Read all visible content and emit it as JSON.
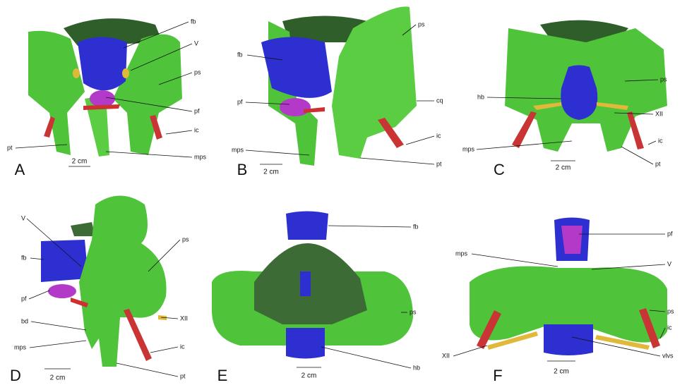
{
  "panels": [
    {
      "letter": "A",
      "scale": "2 cm",
      "labels": [
        "fb",
        "V",
        "ps",
        "pf",
        "ic",
        "pt",
        "mps"
      ]
    },
    {
      "letter": "B",
      "scale": "2 cm",
      "labels": [
        "ps",
        "fb",
        "pf",
        "cq",
        "ic",
        "mps",
        "pt"
      ]
    },
    {
      "letter": "C",
      "scale": "2 cm",
      "labels": [
        "ps",
        "hb",
        "XII",
        "ic",
        "mps",
        "pt"
      ]
    },
    {
      "letter": "D",
      "scale": "2 cm",
      "labels": [
        "V",
        "fb",
        "ps",
        "pf",
        "XII",
        "bd",
        "mps",
        "ic",
        "pt"
      ]
    },
    {
      "letter": "E",
      "scale": "2 cm",
      "labels": [
        "fb",
        "ps",
        "hb"
      ]
    },
    {
      "letter": "F",
      "scale": "2 cm",
      "labels": [
        "pf",
        "mps",
        "V",
        "ps",
        "ic",
        "XII",
        "vlvs"
      ]
    }
  ]
}
